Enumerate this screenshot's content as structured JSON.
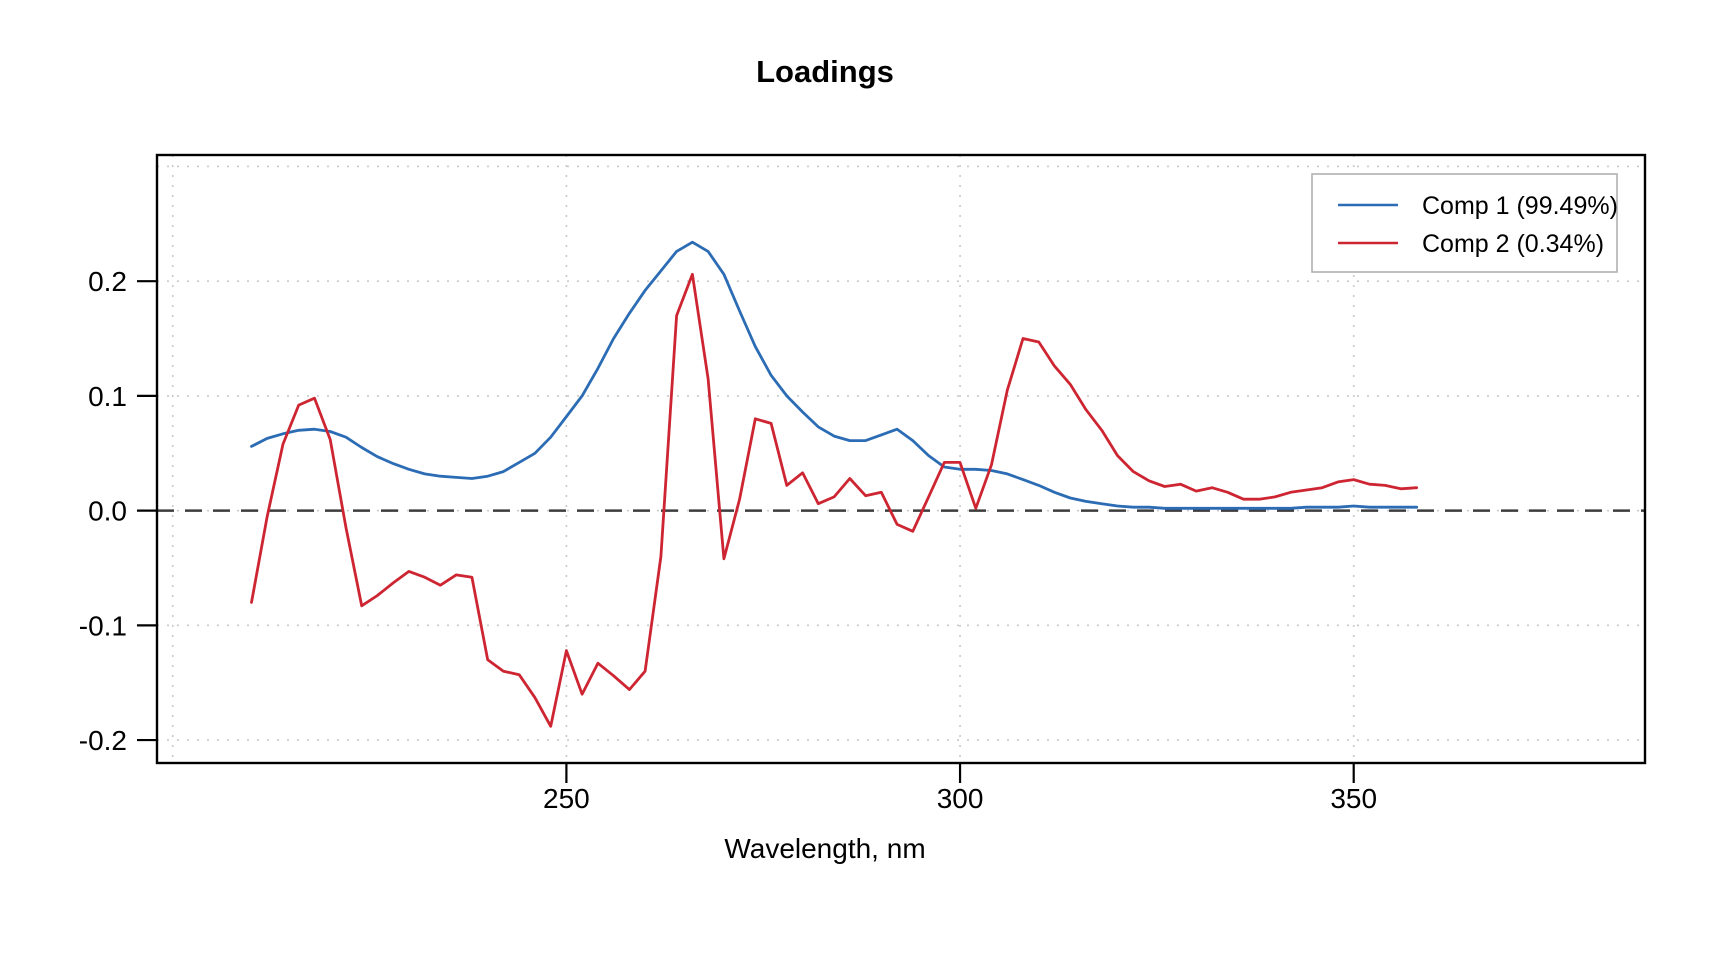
{
  "page": {
    "title": "Loadings",
    "xlabel": "Wavelength, nm"
  },
  "legend": {
    "position": "topright",
    "items": [
      {
        "label": "Comp 1 (99.49%)",
        "color": "#2B6CB4"
      },
      {
        "label": "Comp 2 (0.34%)",
        "color": "#CD2532"
      }
    ]
  },
  "chart_data": {
    "type": "line",
    "title": "Loadings",
    "xlabel": "Wavelength, nm",
    "ylabel": "",
    "grid": "dotted",
    "zero_line": true,
    "legend_position": "topright",
    "xlim": [
      198,
      387
    ],
    "ylim": [
      -0.22,
      0.31
    ],
    "xticks": [
      250,
      300,
      350
    ],
    "yticks": [
      -0.2,
      -0.1,
      0.0,
      0.1,
      0.2
    ],
    "x_gridlines": [
      200,
      250,
      300,
      350
    ],
    "y_gridlines": [
      -0.2,
      -0.1,
      0,
      0.1,
      0.2,
      0.3
    ],
    "x": [
      210,
      212,
      214,
      216,
      218,
      220,
      222,
      224,
      226,
      228,
      230,
      232,
      234,
      236,
      238,
      240,
      242,
      244,
      246,
      248,
      250,
      252,
      254,
      256,
      258,
      260,
      262,
      264,
      266,
      268,
      270,
      272,
      274,
      276,
      278,
      280,
      282,
      284,
      286,
      288,
      290,
      292,
      294,
      296,
      298,
      300,
      302,
      304,
      306,
      308,
      310,
      312,
      314,
      316,
      318,
      320,
      322,
      324,
      326,
      328,
      330,
      332,
      334,
      336,
      338,
      340,
      342,
      344,
      346,
      348,
      350,
      352,
      354,
      356,
      358
    ],
    "series": [
      {
        "name": "Comp 1 (99.49%)",
        "color": "#2B6CB4",
        "values": [
          0.056,
          0.063,
          0.067,
          0.07,
          0.071,
          0.069,
          0.064,
          0.055,
          0.047,
          0.041,
          0.036,
          0.032,
          0.03,
          0.029,
          0.028,
          0.03,
          0.034,
          0.042,
          0.05,
          0.064,
          0.082,
          0.1,
          0.124,
          0.15,
          0.172,
          0.192,
          0.209,
          0.226,
          0.234,
          0.226,
          0.206,
          0.174,
          0.143,
          0.118,
          0.1,
          0.086,
          0.073,
          0.065,
          0.061,
          0.061,
          0.066,
          0.071,
          0.061,
          0.048,
          0.038,
          0.036,
          0.036,
          0.035,
          0.032,
          0.027,
          0.022,
          0.016,
          0.011,
          0.008,
          0.006,
          0.004,
          0.003,
          0.003,
          0.002,
          0.002,
          0.002,
          0.002,
          0.002,
          0.002,
          0.002,
          0.002,
          0.002,
          0.003,
          0.003,
          0.003,
          0.004,
          0.003,
          0.003,
          0.003,
          0.003
        ]
      },
      {
        "name": "Comp 2 (0.34%)",
        "color": "#CD2532",
        "values": [
          -0.08,
          -0.005,
          0.058,
          0.092,
          0.098,
          0.062,
          -0.015,
          -0.083,
          -0.074,
          -0.063,
          -0.053,
          -0.058,
          -0.065,
          -0.056,
          -0.058,
          -0.13,
          -0.14,
          -0.143,
          -0.163,
          -0.188,
          -0.122,
          -0.16,
          -0.133,
          -0.144,
          -0.156,
          -0.14,
          -0.04,
          0.17,
          0.206,
          0.115,
          -0.042,
          0.01,
          0.08,
          0.076,
          0.022,
          0.033,
          0.006,
          0.012,
          0.028,
          0.013,
          0.016,
          -0.012,
          -0.018,
          0.012,
          0.042,
          0.042,
          0.002,
          0.04,
          0.105,
          0.15,
          0.147,
          0.126,
          0.11,
          0.088,
          0.07,
          0.048,
          0.034,
          0.026,
          0.021,
          0.023,
          0.017,
          0.02,
          0.016,
          0.01,
          0.01,
          0.012,
          0.016,
          0.018,
          0.02,
          0.025,
          0.027,
          0.023,
          0.022,
          0.019,
          0.02
        ]
      }
    ]
  }
}
